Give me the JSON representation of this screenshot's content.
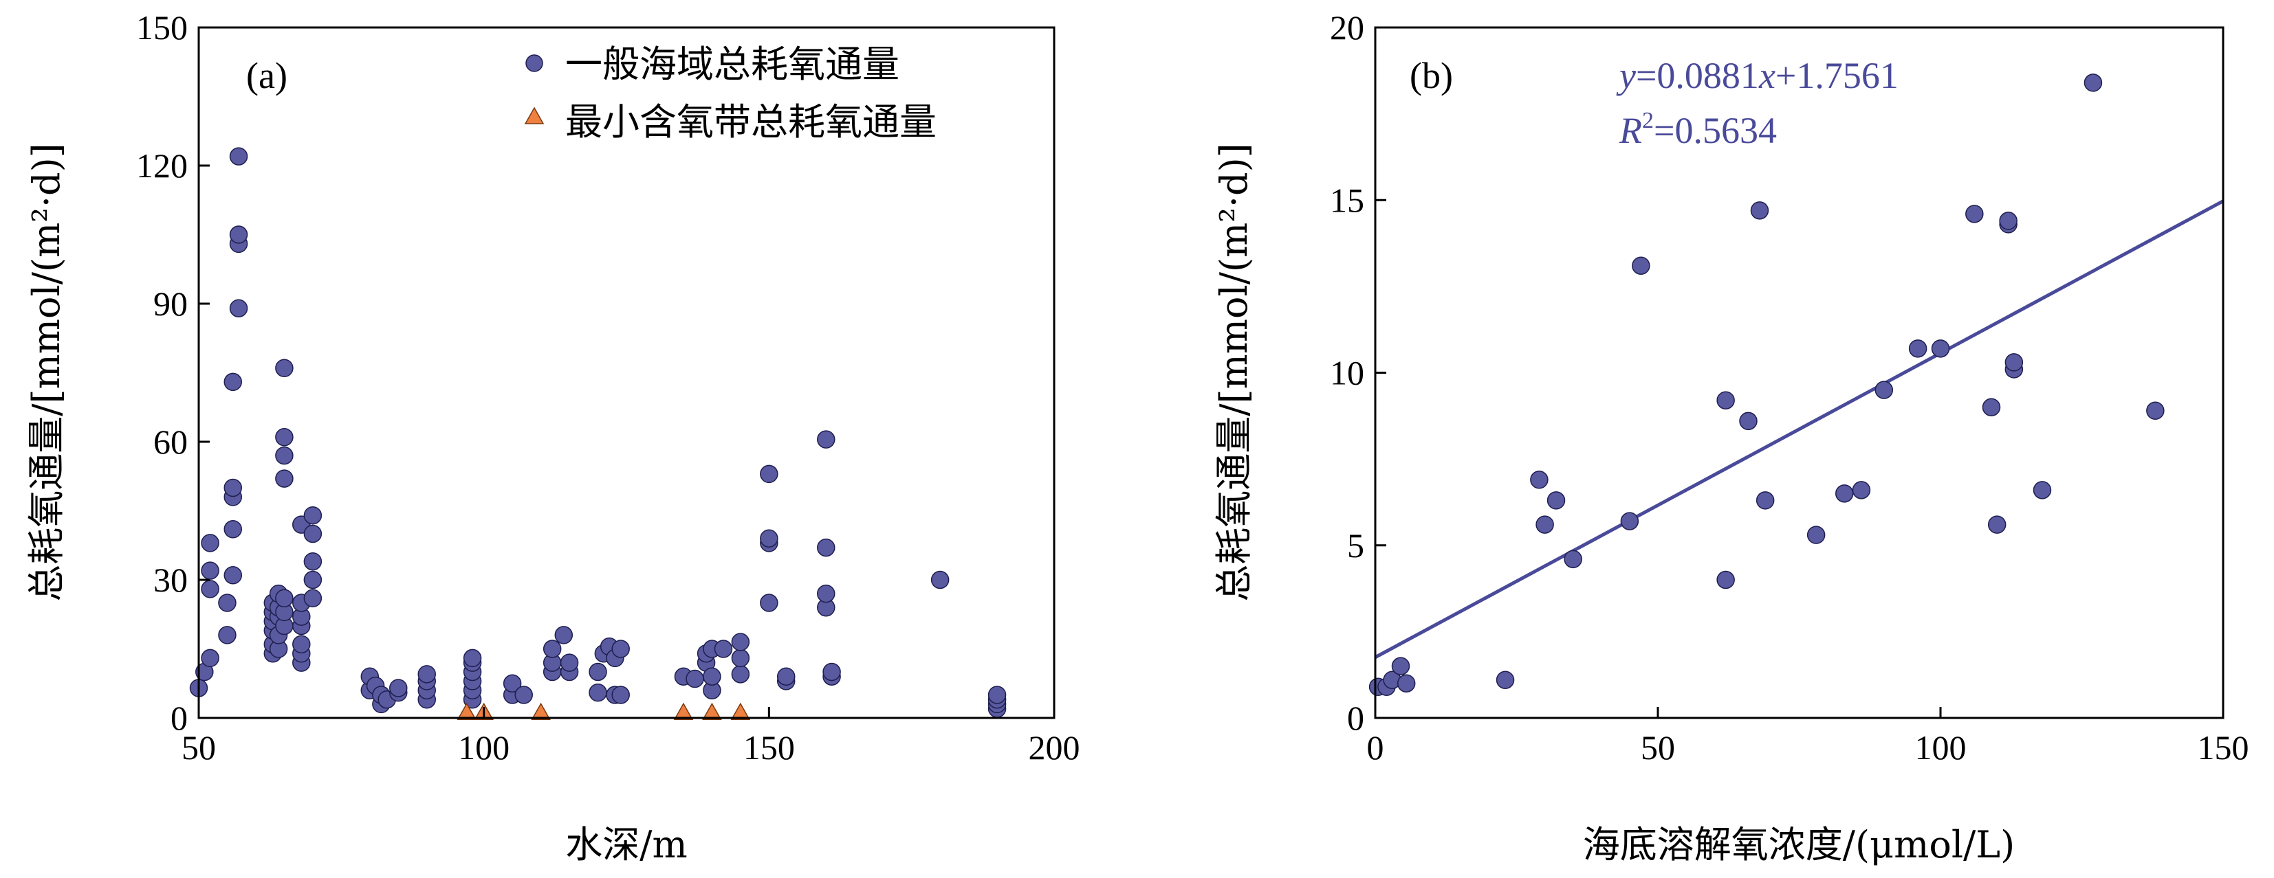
{
  "chart_data": [
    {
      "type": "scatter",
      "panel_label": "(a)",
      "xlabel": "水深/m",
      "ylabel": "总耗氧通量/[mmol/(m²·d)]",
      "xlim": [
        50,
        200
      ],
      "ylim": [
        0,
        150
      ],
      "xticks": [
        50,
        100,
        150,
        200
      ],
      "yticks": [
        0,
        30,
        60,
        90,
        120,
        150
      ],
      "grid": false,
      "legend_position": "top-right",
      "series": [
        {
          "name": "一般海域总耗氧通量",
          "marker": "circle",
          "color": "#5a5aa0",
          "points": [
            [
              50,
              6.5
            ],
            [
              51,
              10
            ],
            [
              52,
              13
            ],
            [
              52,
              28
            ],
            [
              52,
              32
            ],
            [
              52,
              38
            ],
            [
              55,
              18
            ],
            [
              55,
              25
            ],
            [
              56,
              31
            ],
            [
              56,
              41
            ],
            [
              56,
              48
            ],
            [
              56,
              50
            ],
            [
              56,
              73
            ],
            [
              57,
              89
            ],
            [
              57,
              103
            ],
            [
              57,
              105
            ],
            [
              57,
              122
            ],
            [
              63,
              14
            ],
            [
              63,
              16
            ],
            [
              63,
              19
            ],
            [
              63,
              21
            ],
            [
              63,
              23
            ],
            [
              63,
              25
            ],
            [
              64,
              15
            ],
            [
              64,
              18
            ],
            [
              64,
              22
            ],
            [
              64,
              24
            ],
            [
              64,
              27
            ],
            [
              65,
              20
            ],
            [
              65,
              23
            ],
            [
              65,
              26
            ],
            [
              65,
              52
            ],
            [
              65,
              57
            ],
            [
              65,
              61
            ],
            [
              65,
              76
            ],
            [
              68,
              12
            ],
            [
              68,
              14
            ],
            [
              68,
              16
            ],
            [
              68,
              20
            ],
            [
              68,
              22
            ],
            [
              68,
              25
            ],
            [
              68,
              42
            ],
            [
              70,
              26
            ],
            [
              70,
              30
            ],
            [
              70,
              34
            ],
            [
              70,
              40
            ],
            [
              70,
              44
            ],
            [
              80,
              6
            ],
            [
              80,
              9
            ],
            [
              81,
              7
            ],
            [
              82,
              3
            ],
            [
              82,
              5
            ],
            [
              83,
              4
            ],
            [
              85,
              5.5
            ],
            [
              85,
              6.5
            ],
            [
              90,
              4
            ],
            [
              90,
              6
            ],
            [
              90,
              8
            ],
            [
              90,
              9.5
            ],
            [
              98,
              4
            ],
            [
              98,
              6
            ],
            [
              98,
              8
            ],
            [
              98,
              10
            ],
            [
              98,
              12
            ],
            [
              98,
              13
            ],
            [
              105,
              5
            ],
            [
              105,
              7.5
            ],
            [
              107,
              5
            ],
            [
              112,
              10
            ],
            [
              112,
              12
            ],
            [
              112,
              15
            ],
            [
              114,
              18
            ],
            [
              115,
              10
            ],
            [
              115,
              12
            ],
            [
              120,
              5.5
            ],
            [
              120,
              10
            ],
            [
              121,
              14
            ],
            [
              122,
              15.5
            ],
            [
              123,
              5
            ],
            [
              123,
              13
            ],
            [
              124,
              5
            ],
            [
              124,
              15
            ],
            [
              135,
              9
            ],
            [
              137,
              8.5
            ],
            [
              139,
              12
            ],
            [
              139,
              14
            ],
            [
              140,
              6
            ],
            [
              140,
              9
            ],
            [
              140,
              15
            ],
            [
              142,
              15
            ],
            [
              145,
              9.5
            ],
            [
              145,
              13
            ],
            [
              145,
              16.5
            ],
            [
              150,
              25
            ],
            [
              150,
              38
            ],
            [
              150,
              39
            ],
            [
              150,
              53
            ],
            [
              153,
              8
            ],
            [
              153,
              9
            ],
            [
              160,
              24
            ],
            [
              160,
              27
            ],
            [
              160,
              37
            ],
            [
              160,
              60.5
            ],
            [
              161,
              9
            ],
            [
              161,
              10
            ],
            [
              180,
              30
            ],
            [
              190,
              2
            ],
            [
              190,
              3
            ],
            [
              190,
              4
            ],
            [
              190,
              5
            ]
          ]
        },
        {
          "name": "最小含氧带总耗氧通量",
          "marker": "triangle",
          "color": "#ee8040",
          "points": [
            [
              97,
              1
            ],
            [
              100,
              1
            ],
            [
              110,
              1
            ],
            [
              135,
              1
            ],
            [
              140,
              1
            ],
            [
              145,
              1
            ]
          ]
        }
      ]
    },
    {
      "type": "scatter",
      "panel_label": "(b)",
      "xlabel": "海底溶解氧浓度/(μmol/L)",
      "ylabel": "总耗氧通量/[mmol/(m²·d)]",
      "xlim": [
        0,
        150
      ],
      "ylim": [
        0,
        20
      ],
      "xticks": [
        0,
        50,
        100,
        150
      ],
      "yticks": [
        0,
        5,
        10,
        15,
        20
      ],
      "grid": false,
      "equation": "y=0.0881x+1.7561",
      "equation_parts": {
        "y": "y",
        "coef": "=0.0881",
        "x": "x",
        "const": "+1.7561"
      },
      "r2": {
        "R": "R",
        "sup": "2",
        "value": "=0.5634"
      },
      "fit": {
        "slope": 0.0881,
        "intercept": 1.7561
      },
      "series": [
        {
          "marker": "circle",
          "color": "#5a5aa0",
          "points": [
            [
              0.5,
              0.9
            ],
            [
              2,
              0.9
            ],
            [
              3,
              1.1
            ],
            [
              4.5,
              1.5
            ],
            [
              5.5,
              1.0
            ],
            [
              23,
              1.1
            ],
            [
              29,
              6.9
            ],
            [
              30,
              5.6
            ],
            [
              32,
              6.3
            ],
            [
              35,
              4.6
            ],
            [
              45,
              5.7
            ],
            [
              47,
              13.1
            ],
            [
              62,
              4.0
            ],
            [
              62,
              9.2
            ],
            [
              66,
              8.6
            ],
            [
              68,
              14.7
            ],
            [
              69,
              6.3
            ],
            [
              78,
              5.3
            ],
            [
              83,
              6.5
            ],
            [
              86,
              6.6
            ],
            [
              90,
              9.5
            ],
            [
              96,
              10.7
            ],
            [
              100,
              10.7
            ],
            [
              106,
              14.6
            ],
            [
              109,
              9.0
            ],
            [
              110,
              5.6
            ],
            [
              112,
              14.3
            ],
            [
              112,
              14.4
            ],
            [
              113,
              10.1
            ],
            [
              113,
              10.3
            ],
            [
              118,
              6.6
            ],
            [
              127,
              18.4
            ],
            [
              138,
              8.9
            ]
          ]
        }
      ]
    }
  ]
}
